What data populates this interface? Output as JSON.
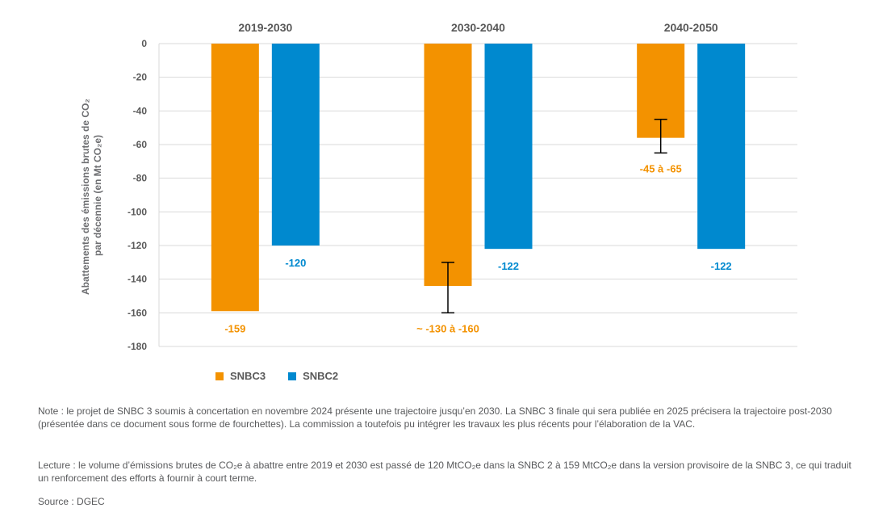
{
  "chart_data": {
    "type": "bar",
    "categories": [
      "2019-2030",
      "2030-2040",
      "2040-2050"
    ],
    "series": [
      {
        "name": "SNBC3",
        "color": "#f39200",
        "values": [
          -159,
          -144,
          -56
        ],
        "labels": [
          "-159",
          "~ -130 à -160",
          "-45 à -65"
        ],
        "error_ranges": [
          null,
          [
            -130,
            -160
          ],
          [
            -45,
            -65
          ]
        ]
      },
      {
        "name": "SNBC2",
        "color": "#0089cf",
        "values": [
          -120,
          -122,
          -122
        ],
        "labels": [
          "-120",
          "-122",
          "-122"
        ],
        "error_ranges": [
          null,
          null,
          null
        ]
      }
    ],
    "ylabel_line1": "Abattements des émissions brutes de CO₂",
    "ylabel_line2": "par décennie (en Mt CO₂e)",
    "ylim": [
      -180,
      0
    ],
    "yticks": [
      0,
      -20,
      -40,
      -60,
      -80,
      -100,
      -120,
      -140,
      -160,
      -180
    ],
    "grid": true,
    "legend_position": "bottom-left"
  },
  "notes": {
    "note": "Note : le projet de SNBC 3 soumis à concertation en novembre 2024 présente une trajectoire jusqu’en 2030. La SNBC 3 finale qui sera publiée en 2025 précisera la trajectoire post-2030 (présentée dans ce document sous forme de fourchettes). La commission a toutefois pu intégrer les travaux les plus récents pour l’élaboration de la VAC.",
    "reading": "Lecture : le volume d’émissions brutes de CO₂e à abattre entre 2019 et 2030 est passé de 120 MtCO₂e dans la SNBC 2 à 159 MtCO₂e dans la version provisoire de la SNBC 3, ce qui traduit un renforcement des efforts à fournir à court terme.",
    "source": "Source : DGEC"
  }
}
